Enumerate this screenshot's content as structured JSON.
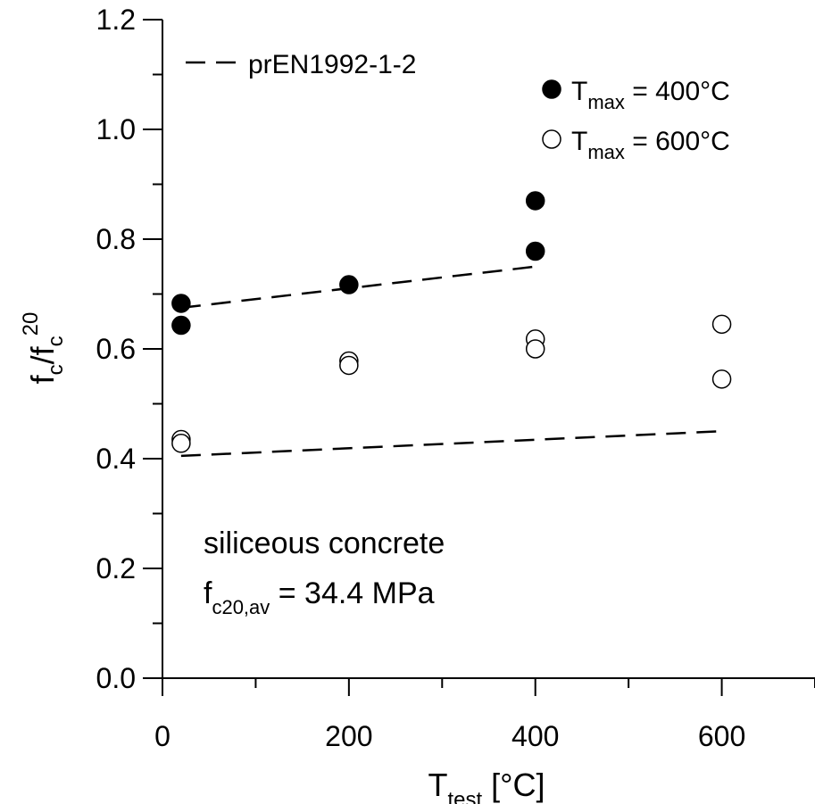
{
  "chart_data": {
    "type": "scatter",
    "xlabel": {
      "main": "T",
      "sub": "test",
      "rest": " [°C]"
    },
    "ylabel": {
      "p1": "f",
      "s1": "c",
      "p2": "/f",
      "s2": "c",
      "sup": "20"
    },
    "xlim": [
      0,
      700
    ],
    "ylim": [
      0,
      1.2
    ],
    "xticks": [
      0,
      200,
      400,
      600
    ],
    "xtick_labels": [
      "0",
      "200",
      "400",
      "600"
    ],
    "yticks": [
      0,
      0.2,
      0.4,
      0.6,
      0.8,
      1.0,
      1.2
    ],
    "ytick_labels": [
      "0.0",
      "0.2",
      "0.4",
      "0.6",
      "0.8",
      "1.0",
      "1.2"
    ],
    "grid": false,
    "legend_position": "top",
    "series": [
      {
        "name": "prEN1992-1-2 (Tmax = 400°C)",
        "style": "dashed-line",
        "color": "#000000",
        "points": [
          [
            20,
            0.675
          ],
          [
            400,
            0.75
          ]
        ]
      },
      {
        "name": "prEN1992-1-2 (Tmax = 600°C)",
        "style": "dashed-line",
        "color": "#000000",
        "points": [
          [
            20,
            0.405
          ],
          [
            600,
            0.45
          ]
        ]
      },
      {
        "name": "Tmax = 400°C",
        "style": "filled-circle",
        "color": "#000000",
        "points": [
          [
            20,
            0.683
          ],
          [
            20,
            0.643
          ],
          [
            200,
            0.717
          ],
          [
            400,
            0.87
          ],
          [
            400,
            0.778
          ]
        ]
      },
      {
        "name": "Tmax = 600°C",
        "style": "open-circle",
        "color": "#000000",
        "points": [
          [
            20,
            0.435
          ],
          [
            20,
            0.428
          ],
          [
            200,
            0.578
          ],
          [
            200,
            0.57
          ],
          [
            400,
            0.618
          ],
          [
            400,
            0.6
          ],
          [
            600,
            0.645
          ],
          [
            600,
            0.545
          ]
        ]
      }
    ],
    "legend": [
      {
        "label": "prEN1992-1-2",
        "marker": "dash"
      },
      {
        "label_main": "T",
        "label_sub": "max",
        "label_rest": " = 400°C",
        "marker": "filled"
      },
      {
        "label_main": "T",
        "label_sub": "max",
        "label_rest": " = 600°C",
        "marker": "open"
      }
    ],
    "annotation": {
      "line1": "siliceous concrete",
      "line2_main": "f",
      "line2_sub": "c20,av",
      "line2_rest": " = 34.4 MPa"
    }
  }
}
